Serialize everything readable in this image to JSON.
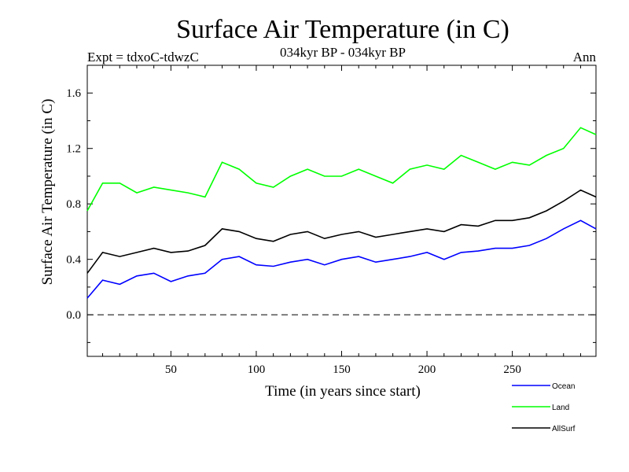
{
  "chart_data": {
    "type": "line",
    "title": "Surface Air Temperature (in C)",
    "subtitle_left": "Expt = tdxoC-tdwzC",
    "subtitle_center": "034kyr BP - 034kyr BP",
    "subtitle_right": "Ann",
    "xlabel": "Time (in years since start)",
    "ylabel": "Surface Air Temperature (in C)",
    "xlim": [
      1,
      299
    ],
    "ylim": [
      -0.3,
      1.8
    ],
    "xticks": [
      50,
      100,
      150,
      200,
      250
    ],
    "xtick_labels": [
      "50",
      "100",
      "150",
      "200",
      "250"
    ],
    "yticks": [
      0.0,
      0.4,
      0.8,
      1.2,
      1.6
    ],
    "ytick_labels": [
      "0.0",
      "0.4",
      "0.8",
      "1.2",
      "1.6"
    ],
    "zero_line": true,
    "legend_position": "bottom-right",
    "series": [
      {
        "name": "Ocean",
        "color": "#0000ff",
        "x": [
          1,
          10,
          20,
          30,
          40,
          50,
          60,
          70,
          80,
          90,
          100,
          110,
          120,
          130,
          140,
          150,
          160,
          170,
          180,
          190,
          200,
          210,
          220,
          230,
          240,
          250,
          260,
          270,
          280,
          290,
          299
        ],
        "values": [
          0.12,
          0.25,
          0.22,
          0.28,
          0.3,
          0.24,
          0.28,
          0.3,
          0.4,
          0.42,
          0.36,
          0.35,
          0.38,
          0.4,
          0.36,
          0.4,
          0.42,
          0.38,
          0.4,
          0.42,
          0.45,
          0.4,
          0.45,
          0.46,
          0.48,
          0.48,
          0.5,
          0.55,
          0.62,
          0.68,
          0.62
        ]
      },
      {
        "name": "Land",
        "color": "#00ff00",
        "x": [
          1,
          10,
          20,
          30,
          40,
          50,
          60,
          70,
          80,
          90,
          100,
          110,
          120,
          130,
          140,
          150,
          160,
          170,
          180,
          190,
          200,
          210,
          220,
          230,
          240,
          250,
          260,
          270,
          280,
          290,
          299
        ],
        "values": [
          0.75,
          0.95,
          0.95,
          0.88,
          0.92,
          0.9,
          0.88,
          0.85,
          1.1,
          1.05,
          0.95,
          0.92,
          1.0,
          1.05,
          1.0,
          1.0,
          1.05,
          1.0,
          0.95,
          1.05,
          1.08,
          1.05,
          1.15,
          1.1,
          1.05,
          1.1,
          1.08,
          1.15,
          1.2,
          1.35,
          1.3
        ]
      },
      {
        "name": "AllSurf",
        "color": "#000000",
        "x": [
          1,
          10,
          20,
          30,
          40,
          50,
          60,
          70,
          80,
          90,
          100,
          110,
          120,
          130,
          140,
          150,
          160,
          170,
          180,
          190,
          200,
          210,
          220,
          230,
          240,
          250,
          260,
          270,
          280,
          290,
          299
        ],
        "values": [
          0.3,
          0.45,
          0.42,
          0.45,
          0.48,
          0.45,
          0.46,
          0.5,
          0.62,
          0.6,
          0.55,
          0.53,
          0.58,
          0.6,
          0.55,
          0.58,
          0.6,
          0.56,
          0.58,
          0.6,
          0.62,
          0.6,
          0.65,
          0.64,
          0.68,
          0.68,
          0.7,
          0.75,
          0.82,
          0.9,
          0.85
        ]
      }
    ]
  }
}
